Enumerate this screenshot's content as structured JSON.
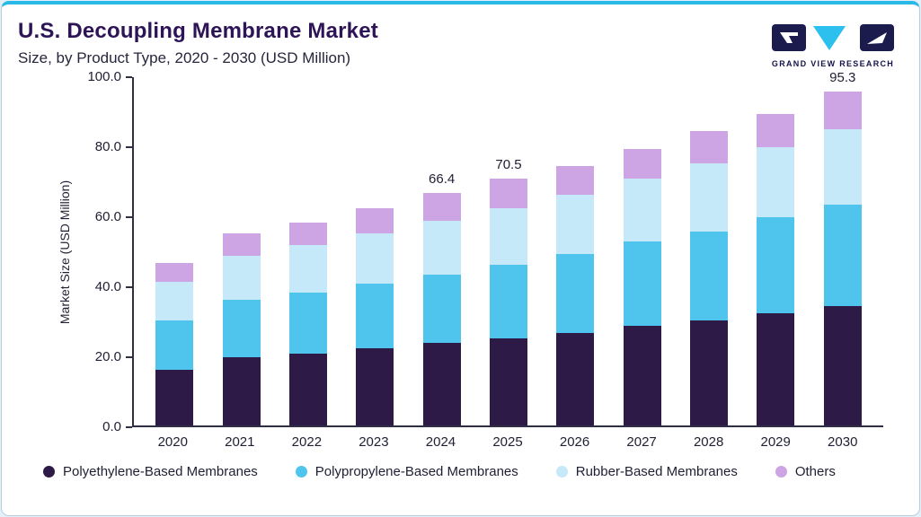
{
  "header": {
    "title": "U.S. Decoupling Membrane Market",
    "subtitle": "Size, by Product Type, 2020 - 2030 (USD Million)",
    "brand": "GRAND VIEW RESEARCH"
  },
  "colors": {
    "accent_top_bar": "#29b9e7",
    "title": "#2d1457",
    "axis": "#2e2e44",
    "background": "#e3f0f9"
  },
  "chart_data": {
    "type": "bar",
    "stacked": true,
    "title": "U.S. Decoupling Membrane Market",
    "xlabel": "",
    "ylabel": "Market Size (USD Million)",
    "ylim": [
      0,
      100
    ],
    "yticks": [
      "100.0",
      "80.0",
      "60.0",
      "40.0",
      "20.0",
      "0.0"
    ],
    "grid": false,
    "legend_position": "bottom",
    "categories": [
      "2020",
      "2021",
      "2022",
      "2023",
      "2024",
      "2025",
      "2026",
      "2027",
      "2028",
      "2029",
      "2030"
    ],
    "series": [
      {
        "name": "Polyethylene-Based Membranes",
        "color": "#2e1a47",
        "values": [
          16.0,
          19.5,
          20.5,
          22.0,
          23.5,
          25.0,
          26.5,
          28.5,
          30.0,
          32.0,
          34.0
        ]
      },
      {
        "name": "Polypropylene-Based Membranes",
        "color": "#4fc4ec",
        "values": [
          14.0,
          16.5,
          17.5,
          18.5,
          19.5,
          21.0,
          22.5,
          24.0,
          25.5,
          27.5,
          29.0
        ]
      },
      {
        "name": "Rubber-Based Membranes",
        "color": "#c5e9f8",
        "values": [
          11.0,
          12.5,
          13.5,
          14.5,
          15.5,
          16.0,
          17.0,
          18.0,
          19.5,
          20.0,
          21.5
        ]
      },
      {
        "name": "Others",
        "color": "#cda4e4",
        "values": [
          5.5,
          6.5,
          6.5,
          7.0,
          7.9,
          8.5,
          8.0,
          8.5,
          9.0,
          9.5,
          10.8
        ]
      }
    ],
    "value_labels": [
      null,
      null,
      null,
      null,
      "66.4",
      "70.5",
      null,
      null,
      null,
      null,
      "95.3"
    ]
  }
}
